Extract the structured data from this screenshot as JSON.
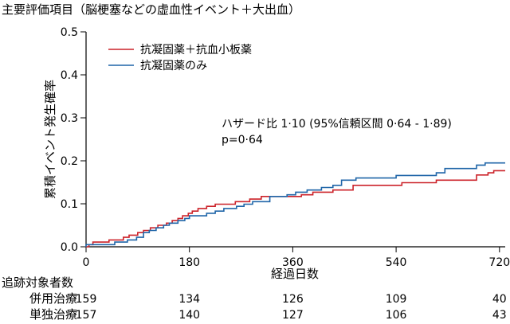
{
  "chart_data": {
    "type": "line",
    "title": "主要評価項目（脳梗塞などの虚血性イベント＋大出血）",
    "xlabel": "経過日数",
    "ylabel": "累積イベント発生確率",
    "xlim": [
      0,
      730
    ],
    "ylim": [
      0,
      0.5
    ],
    "x_ticks": [
      0,
      180,
      360,
      540,
      720
    ],
    "y_ticks": [
      0.0,
      0.1,
      0.2,
      0.3,
      0.4,
      0.5
    ],
    "y_tick_labels": [
      "0.0",
      "0.1",
      "0.2",
      "0.3",
      "0.4",
      "0.5"
    ],
    "legend_position": "top-left",
    "grid": false,
    "annotation_lines": [
      "ハザード比 1·10 (95%信頼区間 0·64 - 1·89)",
      "p=0·64"
    ],
    "series": [
      {
        "name": "抗凝固薬＋抗血小板薬",
        "color": "#cc2229",
        "points": [
          [
            0,
            0
          ],
          [
            5,
            0
          ],
          [
            5,
            0.005
          ],
          [
            12,
            0.005
          ],
          [
            12,
            0.011
          ],
          [
            40,
            0.011
          ],
          [
            40,
            0.016
          ],
          [
            65,
            0.016
          ],
          [
            65,
            0.022
          ],
          [
            75,
            0.022
          ],
          [
            75,
            0.027
          ],
          [
            90,
            0.027
          ],
          [
            90,
            0.033
          ],
          [
            100,
            0.033
          ],
          [
            100,
            0.038
          ],
          [
            112,
            0.038
          ],
          [
            112,
            0.044
          ],
          [
            125,
            0.044
          ],
          [
            125,
            0.05
          ],
          [
            140,
            0.05
          ],
          [
            140,
            0.055
          ],
          [
            150,
            0.055
          ],
          [
            150,
            0.061
          ],
          [
            160,
            0.061
          ],
          [
            160,
            0.066
          ],
          [
            168,
            0.066
          ],
          [
            168,
            0.072
          ],
          [
            178,
            0.072
          ],
          [
            178,
            0.078
          ],
          [
            185,
            0.078
          ],
          [
            185,
            0.083
          ],
          [
            195,
            0.083
          ],
          [
            195,
            0.089
          ],
          [
            210,
            0.089
          ],
          [
            210,
            0.094
          ],
          [
            225,
            0.094
          ],
          [
            225,
            0.099
          ],
          [
            260,
            0.099
          ],
          [
            260,
            0.105
          ],
          [
            285,
            0.105
          ],
          [
            285,
            0.111
          ],
          [
            305,
            0.111
          ],
          [
            305,
            0.117
          ],
          [
            375,
            0.117
          ],
          [
            375,
            0.121
          ],
          [
            395,
            0.121
          ],
          [
            395,
            0.127
          ],
          [
            430,
            0.127
          ],
          [
            430,
            0.132
          ],
          [
            465,
            0.132
          ],
          [
            465,
            0.143
          ],
          [
            550,
            0.143
          ],
          [
            550,
            0.149
          ],
          [
            610,
            0.149
          ],
          [
            610,
            0.155
          ],
          [
            680,
            0.155
          ],
          [
            680,
            0.167
          ],
          [
            700,
            0.167
          ],
          [
            700,
            0.172
          ],
          [
            710,
            0.172
          ],
          [
            710,
            0.177
          ],
          [
            730,
            0.177
          ]
        ]
      },
      {
        "name": "抗凝固薬のみ",
        "color": "#1f65a8",
        "points": [
          [
            0,
            0
          ],
          [
            0,
            0.005
          ],
          [
            50,
            0.005
          ],
          [
            50,
            0.011
          ],
          [
            72,
            0.011
          ],
          [
            72,
            0.016
          ],
          [
            88,
            0.016
          ],
          [
            88,
            0.022
          ],
          [
            100,
            0.022
          ],
          [
            100,
            0.033
          ],
          [
            110,
            0.033
          ],
          [
            110,
            0.038
          ],
          [
            122,
            0.038
          ],
          [
            122,
            0.044
          ],
          [
            135,
            0.044
          ],
          [
            135,
            0.05
          ],
          [
            145,
            0.05
          ],
          [
            145,
            0.055
          ],
          [
            160,
            0.055
          ],
          [
            160,
            0.061
          ],
          [
            172,
            0.061
          ],
          [
            172,
            0.066
          ],
          [
            180,
            0.066
          ],
          [
            180,
            0.072
          ],
          [
            210,
            0.072
          ],
          [
            210,
            0.078
          ],
          [
            225,
            0.078
          ],
          [
            225,
            0.083
          ],
          [
            240,
            0.083
          ],
          [
            240,
            0.089
          ],
          [
            262,
            0.089
          ],
          [
            262,
            0.094
          ],
          [
            275,
            0.094
          ],
          [
            275,
            0.099
          ],
          [
            290,
            0.099
          ],
          [
            290,
            0.105
          ],
          [
            320,
            0.105
          ],
          [
            320,
            0.117
          ],
          [
            350,
            0.117
          ],
          [
            350,
            0.121
          ],
          [
            365,
            0.121
          ],
          [
            365,
            0.127
          ],
          [
            385,
            0.127
          ],
          [
            385,
            0.132
          ],
          [
            410,
            0.132
          ],
          [
            410,
            0.138
          ],
          [
            430,
            0.138
          ],
          [
            430,
            0.143
          ],
          [
            445,
            0.143
          ],
          [
            445,
            0.155
          ],
          [
            470,
            0.155
          ],
          [
            470,
            0.16
          ],
          [
            540,
            0.16
          ],
          [
            540,
            0.166
          ],
          [
            610,
            0.166
          ],
          [
            610,
            0.172
          ],
          [
            625,
            0.172
          ],
          [
            625,
            0.182
          ],
          [
            680,
            0.182
          ],
          [
            680,
            0.19
          ],
          [
            695,
            0.19
          ],
          [
            695,
            0.195
          ],
          [
            730,
            0.195
          ]
        ]
      }
    ],
    "risk_table": {
      "title": "追跡対象者数",
      "rows": [
        {
          "label": "併用治療",
          "values": [
            "159",
            "134",
            "126",
            "109",
            "40"
          ]
        },
        {
          "label": "単独治療",
          "values": [
            "157",
            "140",
            "127",
            "106",
            "43"
          ]
        }
      ]
    }
  }
}
